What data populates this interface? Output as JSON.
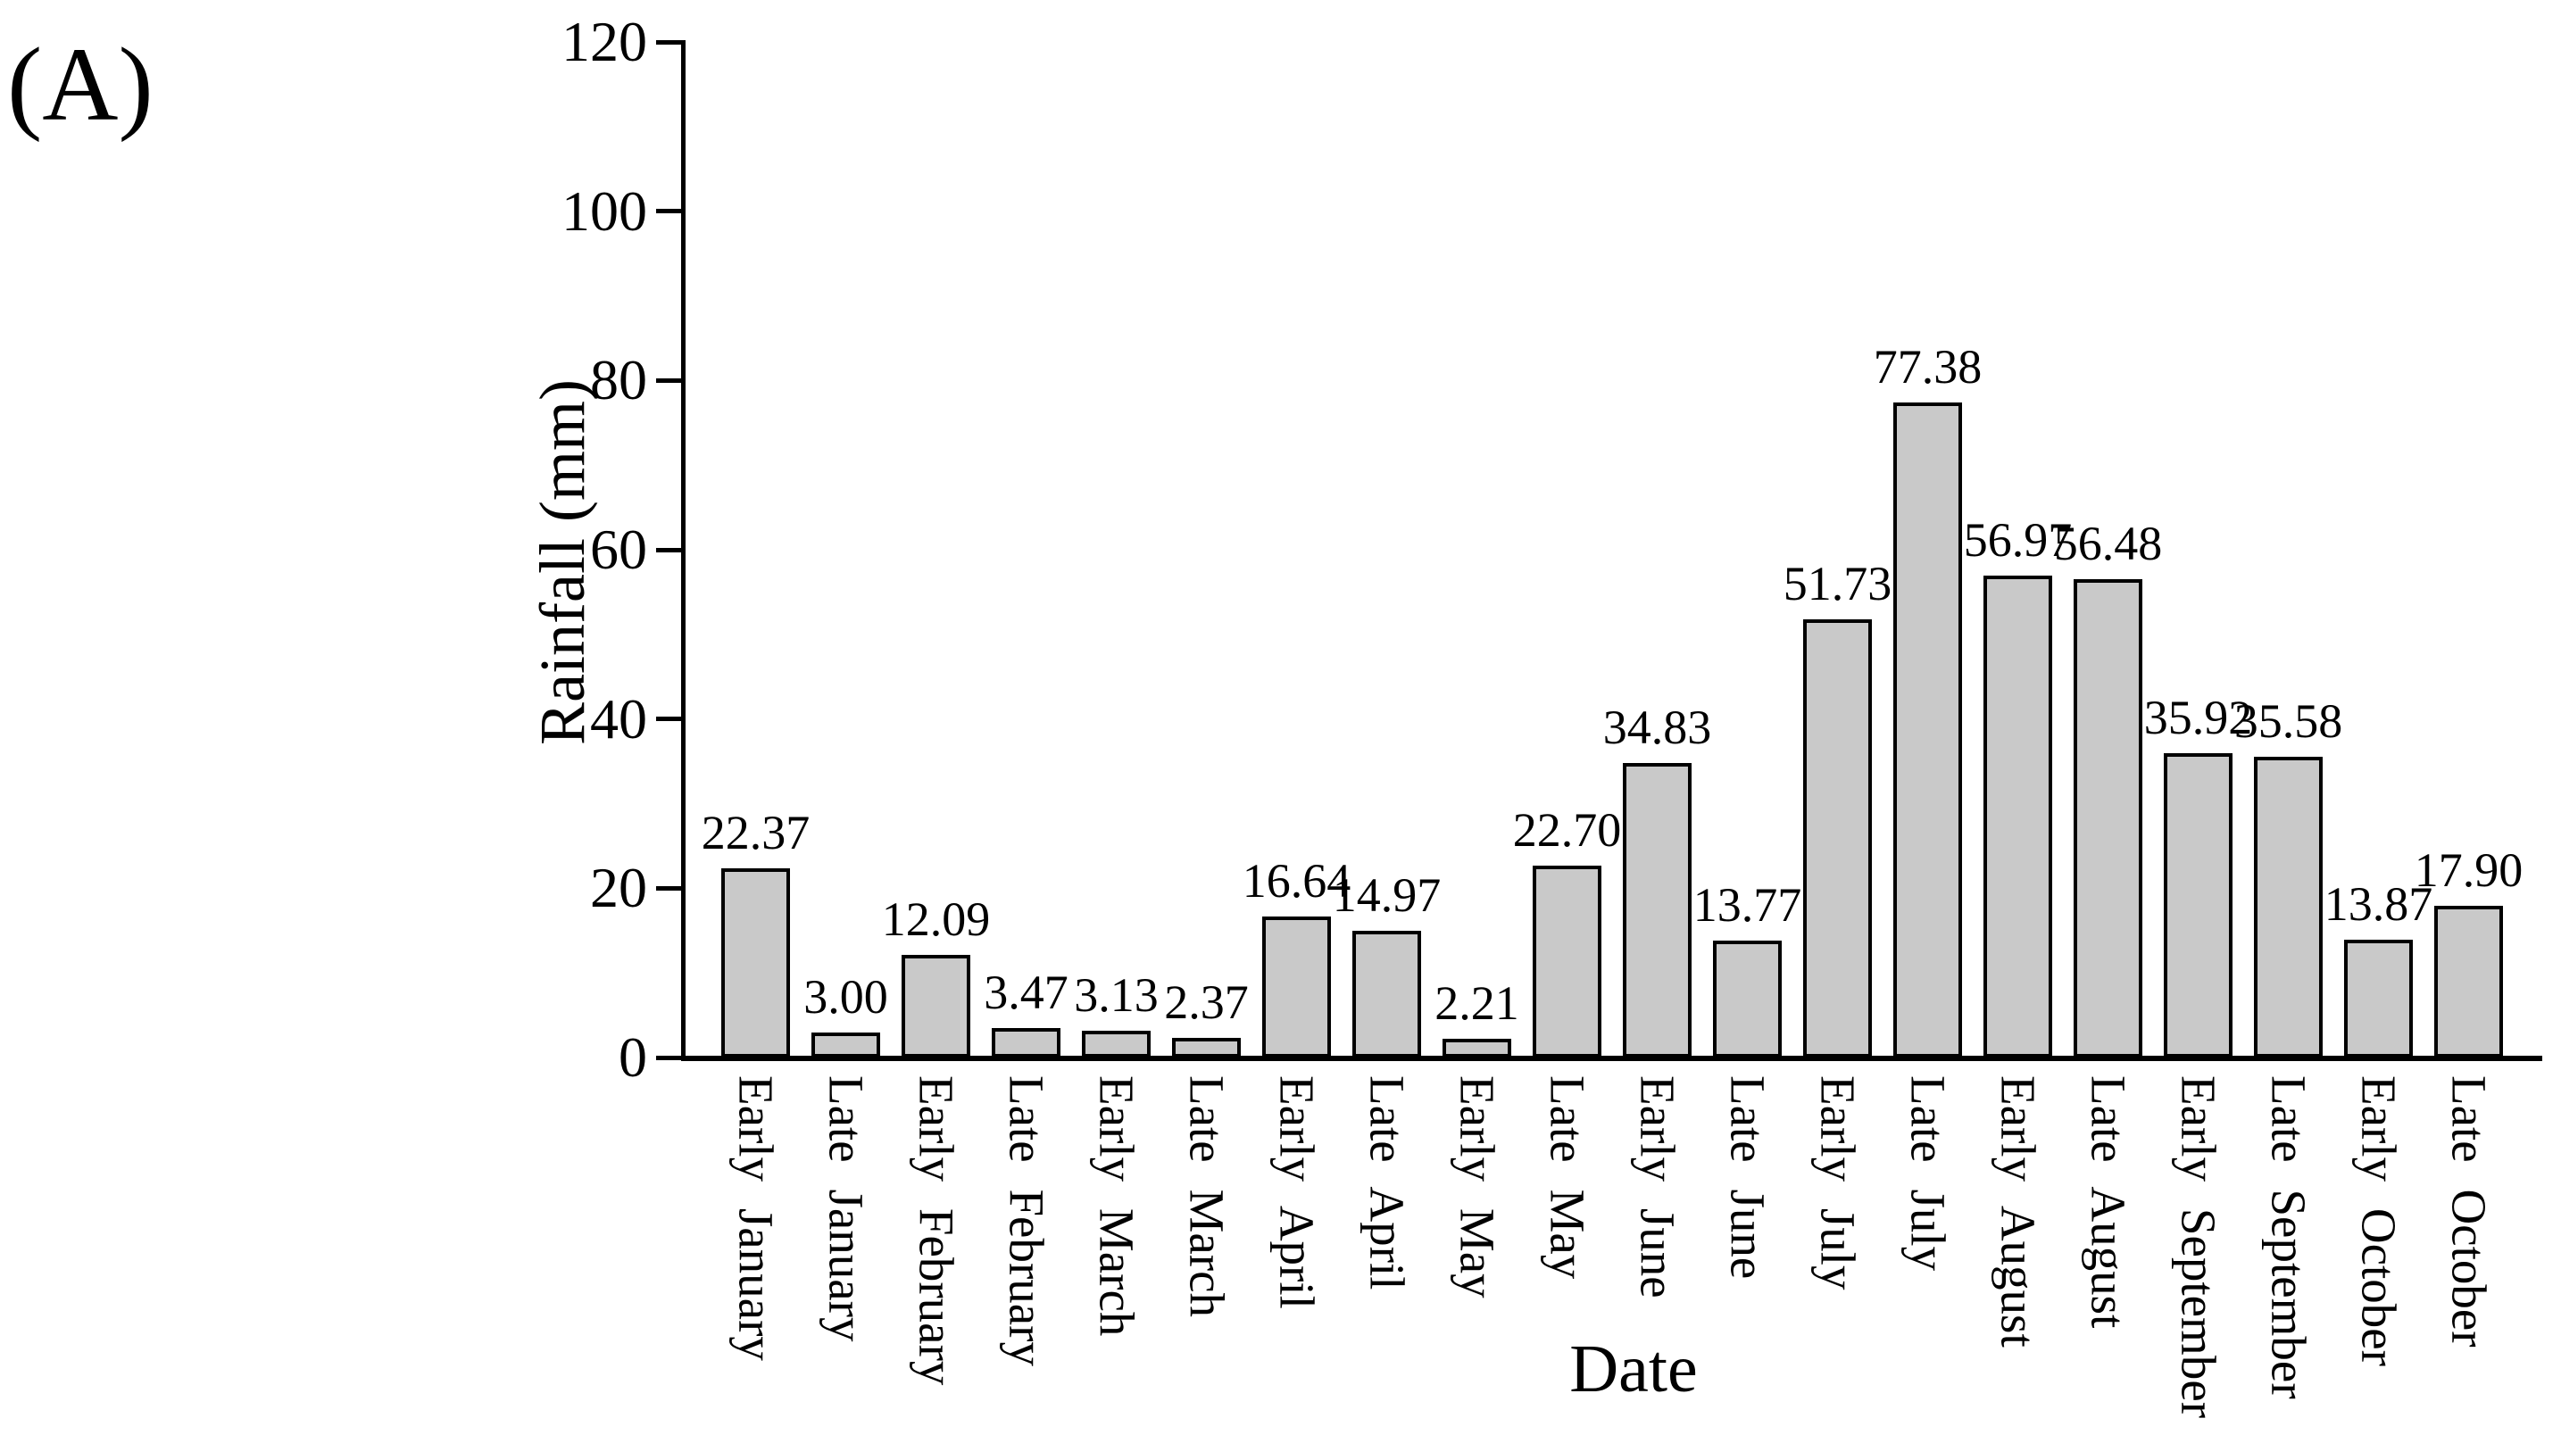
{
  "panel_label": "(A)",
  "chart_data": {
    "type": "bar",
    "title": "",
    "xlabel": "Date",
    "ylabel": "Rainfall (mm)",
    "categories": [
      "Early January",
      "Late January",
      "Early February",
      "Late February",
      "Early March",
      "Late March",
      "Early April",
      "Late April",
      "Early May",
      "Late May",
      "Early June",
      "Late June",
      "Early July",
      "Late July",
      "Early August",
      "Late August",
      "Early September",
      "Late September",
      "Early October",
      "Late October"
    ],
    "values": [
      22.37,
      3.0,
      12.09,
      3.47,
      3.13,
      2.37,
      16.64,
      14.97,
      2.21,
      22.7,
      34.83,
      13.77,
      51.73,
      77.38,
      56.97,
      56.48,
      35.92,
      35.58,
      13.87,
      17.9
    ],
    "bar_value_labels": [
      "22.37",
      "3.00",
      "12.09",
      "3.47",
      "3.13",
      "2.37",
      "16.64",
      "14.97",
      "2.21",
      "22.70",
      "34.83",
      "13.77",
      "51.73",
      "77.38",
      "56.97",
      "56.48",
      "35.92",
      "35.58",
      "13.87",
      "17.90"
    ],
    "ylim": [
      0,
      120
    ],
    "yticks": [
      0,
      20,
      40,
      60,
      80,
      100,
      120
    ],
    "grid": false,
    "legend_position": "none",
    "bar_color": "#c9c9c9",
    "bar_edge_color": "#000000",
    "axis_color": "#000000",
    "text_color": "#000000"
  }
}
